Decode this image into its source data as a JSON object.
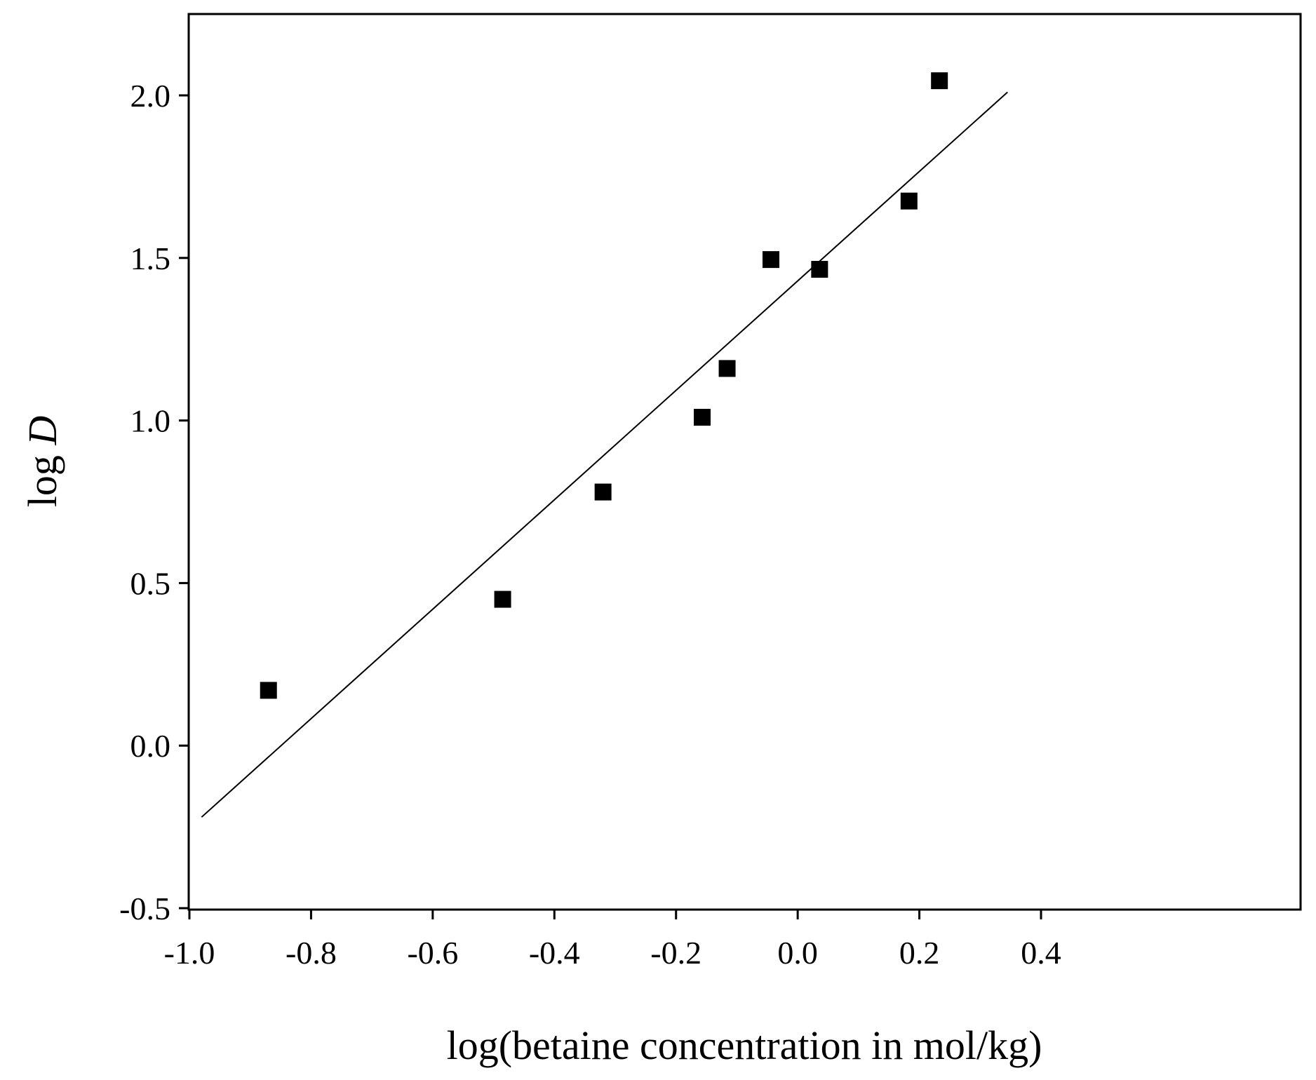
{
  "chart_data": {
    "type": "scatter",
    "xlabel": "log(betaine concentration in mol/kg)",
    "ylabel": {
      "prefix": "log ",
      "variable": "D"
    },
    "xlim": [
      -1.0,
      0.5
    ],
    "ylim": [
      -0.5,
      2.25
    ],
    "x_ticks": [
      "-1.0",
      "-0.8",
      "-0.6",
      "-0.4",
      "-0.2",
      "0.0",
      "0.2",
      "0.4"
    ],
    "y_ticks": [
      "-0.5",
      "0.0",
      "0.5",
      "1.0",
      "1.5",
      "2.0"
    ],
    "grid": false,
    "legend": false,
    "marker": "filled-square",
    "series": [
      {
        "points": [
          {
            "x": -0.87,
            "y": 0.17
          },
          {
            "x": -0.485,
            "y": 0.45
          },
          {
            "x": -0.32,
            "y": 0.78
          },
          {
            "x": -0.157,
            "y": 1.01
          },
          {
            "x": -0.116,
            "y": 1.16
          },
          {
            "x": -0.044,
            "y": 1.495
          },
          {
            "x": 0.036,
            "y": 1.465
          },
          {
            "x": 0.183,
            "y": 1.675
          },
          {
            "x": 0.233,
            "y": 2.045
          }
        ]
      }
    ],
    "fit_line": {
      "x": [
        -0.98,
        0.345
      ],
      "y": [
        -0.22,
        2.01
      ]
    },
    "colors": {
      "marker": "#000000",
      "line": "#000000",
      "axis": "#000000"
    }
  }
}
